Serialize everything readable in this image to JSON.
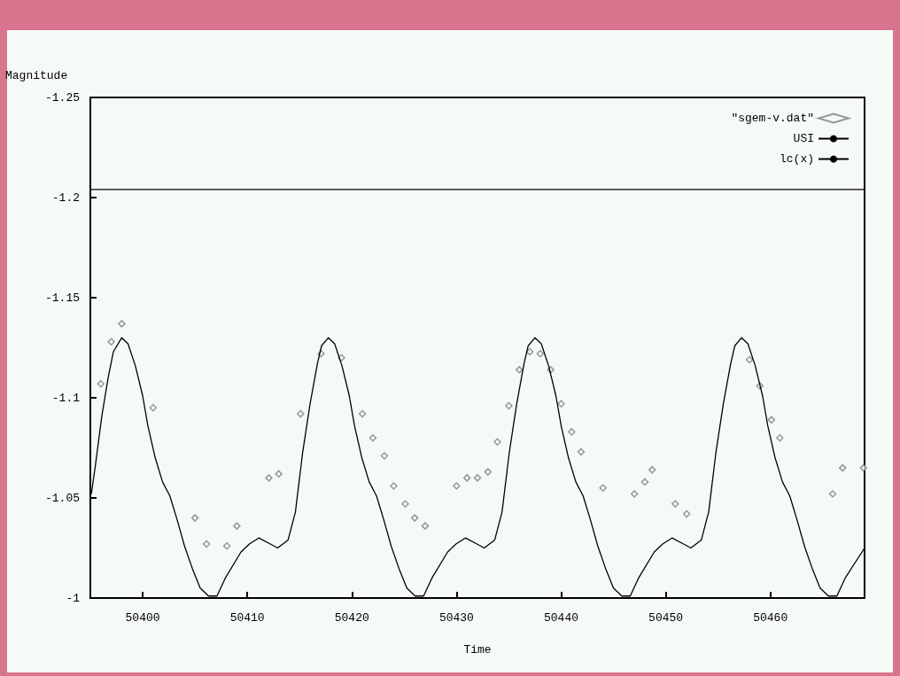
{
  "chart_data": {
    "type": "scatter",
    "xlabel": "Time",
    "ylabel": "Magnitude",
    "xlim": [
      50395,
      50469
    ],
    "xticks": [
      50400,
      50410,
      50420,
      50430,
      50440,
      50450,
      50460
    ],
    "ylim": [
      -1,
      -1.25
    ],
    "yticks": [
      -1.25,
      -1.2,
      -1.15,
      -1.1,
      -1.05,
      -1
    ],
    "legend": "top right",
    "grid": false,
    "series": [
      {
        "name": "\"sgem-v.dat\"",
        "marker": "diamond",
        "color": "#808080",
        "x": [
          50396.0,
          50397.0,
          50398.0,
          50401.0,
          50405.0,
          50406.1,
          50408.05,
          50409.0,
          50412.06,
          50413.0,
          50415.1,
          50417.05,
          50419.0,
          50421.0,
          50422.0,
          50423.1,
          50424.0,
          50425.1,
          50426.0,
          50427.0,
          50430.0,
          50431.0,
          50432.0,
          50433.0,
          50433.9,
          50435.0,
          50436.0,
          50437.0,
          50438.0,
          50439.0,
          50440.0,
          50441.0,
          50441.9,
          50444.0,
          50447.0,
          50448.0,
          50448.7,
          50450.9,
          50452.0,
          50458.0,
          50459.0,
          50460.1,
          50460.9,
          50465.95,
          50466.9,
          50468.9
        ],
        "values": [
          -1.107,
          -1.128,
          -1.137,
          -1.095,
          -1.04,
          -1.027,
          -1.026,
          -1.036,
          -1.06,
          -1.062,
          -1.092,
          -1.122,
          -1.12,
          -1.092,
          -1.08,
          -1.071,
          -1.056,
          -1.047,
          -1.04,
          -1.036,
          -1.056,
          -1.06,
          -1.06,
          -1.063,
          -1.078,
          -1.096,
          -1.114,
          -1.123,
          -1.122,
          -1.114,
          -1.097,
          -1.083,
          -1.073,
          -1.055,
          -1.052,
          -1.058,
          -1.064,
          -1.047,
          -1.042,
          -1.119,
          -1.106,
          -1.089,
          -1.08,
          -1.052,
          -1.065,
          -1.065
        ]
      },
      {
        "name": "USI",
        "type": "line",
        "marker": "none",
        "color": "#000000",
        "x": [
          50395,
          50469
        ],
        "values": [
          -1.204,
          -1.204
        ]
      },
      {
        "name": "lc(x)",
        "type": "line",
        "marker": "none",
        "color": "#000000",
        "x": [
          50395.1,
          50395.5,
          50396.1,
          50396.7,
          50397.2,
          50398.0,
          50398.6,
          50399.3,
          50400.0,
          50400.5,
          50401.2,
          50401.9,
          50402.6,
          50403.3,
          50404.0,
          50404.8,
          50405.5,
          50406.3,
          50407.1,
          50407.9,
          50409.4,
          50410.2,
          50411.1,
          50412.2,
          50412.9,
          50413.9,
          50414.6,
          50415.3,
          50416.0,
          50416.7,
          50417.1,
          50417.75,
          50418.35,
          50419.05,
          50419.75,
          50420.25,
          50420.95,
          50421.65,
          50422.35,
          50423.05,
          50423.75,
          50424.55,
          50425.25,
          50426.05,
          50426.85,
          50427.65,
          50429.15,
          50429.95,
          50430.85,
          50431.95,
          50432.65,
          50433.65,
          50434.35,
          50435.05,
          50435.75,
          50436.45,
          50436.85,
          50437.5,
          50438.1,
          50438.8,
          50439.5,
          50440.0,
          50440.7,
          50441.4,
          50442.1,
          50442.8,
          50443.5,
          50444.3,
          50445.0,
          50445.8,
          50446.6,
          50447.4,
          50448.9,
          50449.7,
          50450.6,
          50451.7,
          50452.4,
          50453.4,
          50454.1,
          50454.8,
          50455.5,
          50456.2,
          50456.6,
          50457.25,
          50457.85,
          50458.55,
          50459.25,
          50459.75,
          50460.45,
          50461.15,
          50461.85,
          50462.55,
          50463.25,
          50464.05,
          50464.75,
          50465.55,
          50466.35,
          50467.15,
          50469.0
        ],
        "values": [
          -1.052,
          -1.067,
          -1.091,
          -1.11,
          -1.123,
          -1.13,
          -1.127,
          -1.116,
          -1.101,
          -1.086,
          -1.07,
          -1.058,
          -1.051,
          -1.039,
          -1.026,
          -1.014,
          -1.005,
          -1.001,
          -1.001,
          -1.01,
          -1.023,
          -1.027,
          -1.03,
          -1.027,
          -1.025,
          -1.029,
          -1.043,
          -1.073,
          -1.097,
          -1.117,
          -1.126,
          -1.13,
          -1.127,
          -1.116,
          -1.101,
          -1.086,
          -1.07,
          -1.058,
          -1.051,
          -1.039,
          -1.026,
          -1.014,
          -1.005,
          -1.001,
          -1.001,
          -1.01,
          -1.023,
          -1.027,
          -1.03,
          -1.027,
          -1.025,
          -1.029,
          -1.043,
          -1.073,
          -1.097,
          -1.117,
          -1.126,
          -1.13,
          -1.127,
          -1.116,
          -1.101,
          -1.086,
          -1.07,
          -1.058,
          -1.051,
          -1.039,
          -1.026,
          -1.014,
          -1.005,
          -1.001,
          -1.001,
          -1.01,
          -1.023,
          -1.027,
          -1.03,
          -1.027,
          -1.025,
          -1.029,
          -1.043,
          -1.073,
          -1.097,
          -1.117,
          -1.126,
          -1.13,
          -1.127,
          -1.116,
          -1.101,
          -1.086,
          -1.07,
          -1.058,
          -1.051,
          -1.039,
          -1.026,
          -1.014,
          -1.005,
          -1.001,
          -1.001,
          -1.01,
          -1.025
        ]
      }
    ]
  }
}
